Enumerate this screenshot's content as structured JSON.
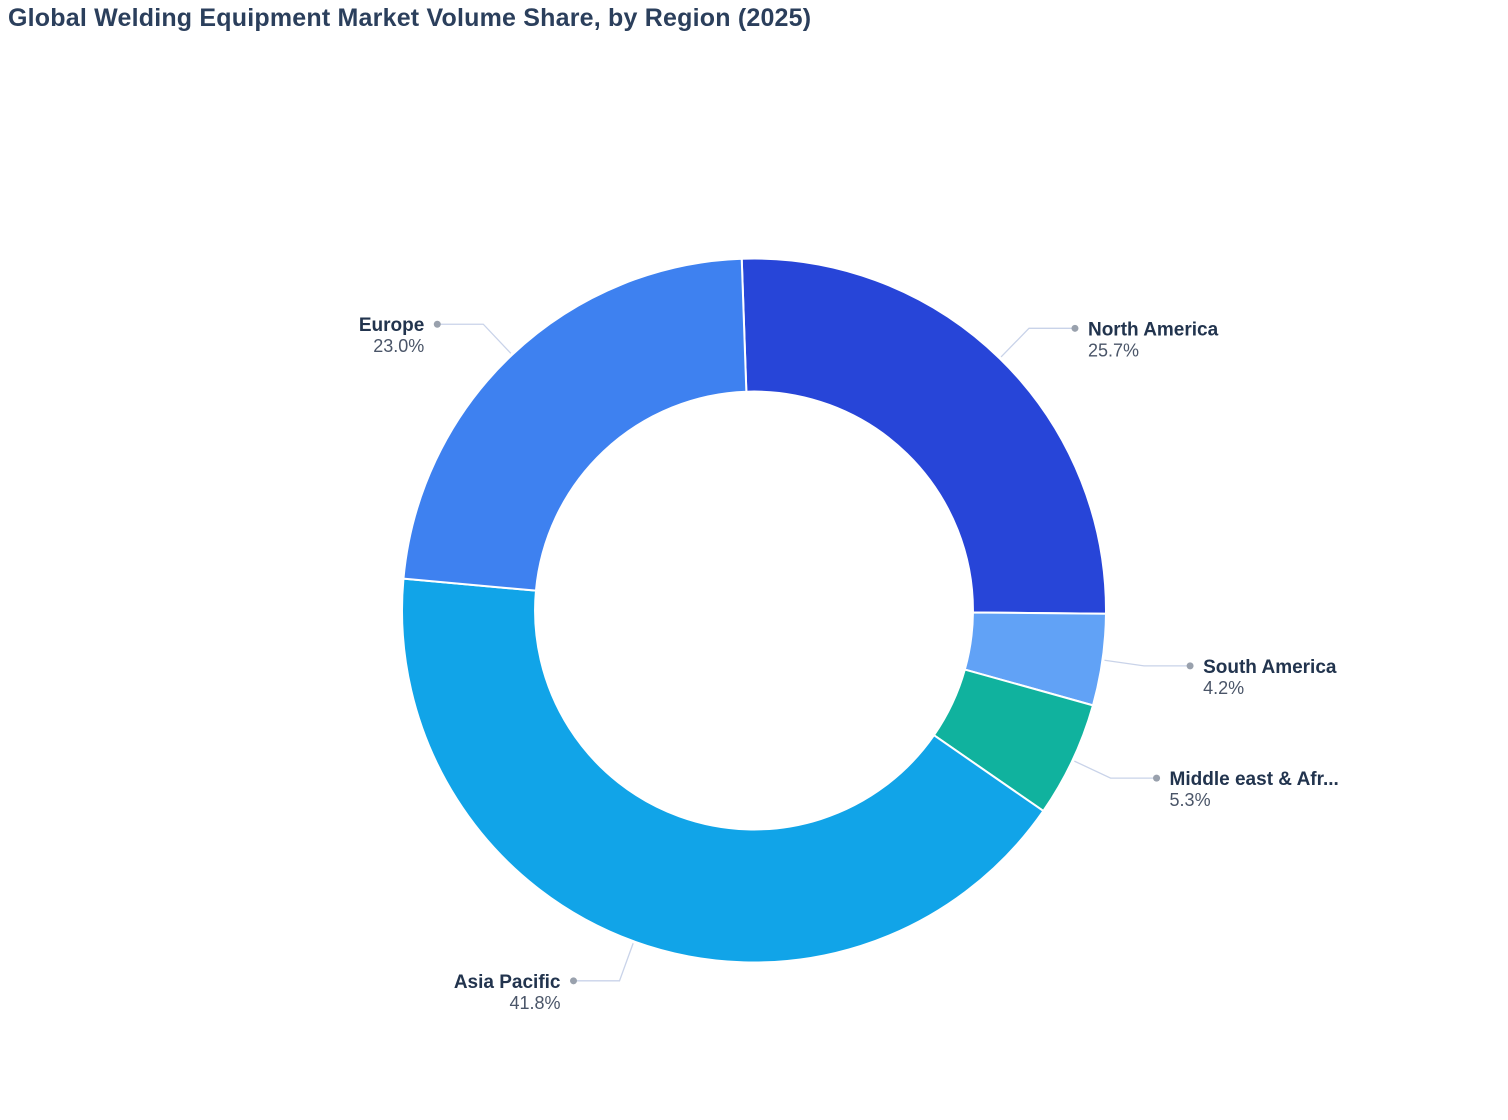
{
  "title": "Global Welding Equipment Market Volume Share, by Region (2025)",
  "chart_data": {
    "type": "pie",
    "subtype": "donut",
    "title": "Global Welding Equipment Market Volume Share, by Region (2025)",
    "legend_position": "none",
    "labels_position": "outside-with-leader-lines",
    "series": [
      {
        "label": "North America",
        "value": 25.7,
        "percent": "25.7%",
        "color": "#2745d8"
      },
      {
        "label": "South America",
        "value": 4.2,
        "percent": "4.2%",
        "color": "#61a2f6"
      },
      {
        "label": "Middle east & Afr...",
        "value": 5.3,
        "percent": "5.3%",
        "color": "#10b29e"
      },
      {
        "label": "Asia Pacific",
        "value": 41.8,
        "percent": "41.8%",
        "color": "#11a4e8"
      },
      {
        "label": "Europe",
        "value": 23.0,
        "percent": "23.0%",
        "color": "#3e81f0"
      }
    ],
    "layout_hints": {
      "start": "top",
      "direction": "clockwise",
      "rotation_deg": -2,
      "hole_ratio": 0.622
    }
  },
  "styles": {
    "background": "#ffffff",
    "title_color": "#2b3f5c",
    "label_color": "#22344e",
    "value_color": "#4a5568",
    "leader_line_color": "#c9d3e9",
    "leader_dot_color": "#99a1ad",
    "slice_gap_color": "#ffffff"
  }
}
